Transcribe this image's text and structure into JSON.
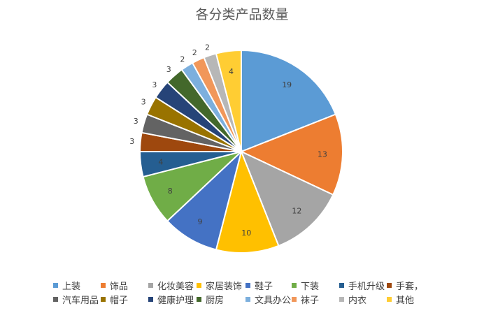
{
  "chart_data": {
    "type": "pie",
    "title": "各分类产品数量",
    "slices": [
      {
        "label": "上装",
        "value": 19,
        "color": "#5B9BD5"
      },
      {
        "label": "饰品",
        "value": 13,
        "color": "#ED7D31"
      },
      {
        "label": "化妆美容",
        "value": 12,
        "color": "#A5A5A5"
      },
      {
        "label": "家居装饰",
        "value": 10,
        "color": "#FFC000"
      },
      {
        "label": "鞋子",
        "value": 9,
        "color": "#4472C4"
      },
      {
        "label": "下装",
        "value": 8,
        "color": "#70AD47"
      },
      {
        "label": "手机升级",
        "value": 4,
        "color": "#255E91"
      },
      {
        "label": "手套，",
        "value": 3,
        "color": "#9E480E"
      },
      {
        "label": "汽车用品",
        "value": 3,
        "color": "#636363"
      },
      {
        "label": "帽子",
        "value": 3,
        "color": "#997300"
      },
      {
        "label": "健康护理",
        "value": 3,
        "color": "#264478"
      },
      {
        "label": "厨房",
        "value": 3,
        "color": "#43682B"
      },
      {
        "label": "文具办公",
        "value": 2,
        "color": "#7CAFDD"
      },
      {
        "label": "袜子",
        "value": 2,
        "color": "#F1975A"
      },
      {
        "label": "内衣",
        "value": 2,
        "color": "#B7B7B7"
      },
      {
        "label": "其他",
        "value": 4,
        "color": "#FFCD33"
      }
    ],
    "legend_position": "bottom",
    "data_labels": true
  }
}
